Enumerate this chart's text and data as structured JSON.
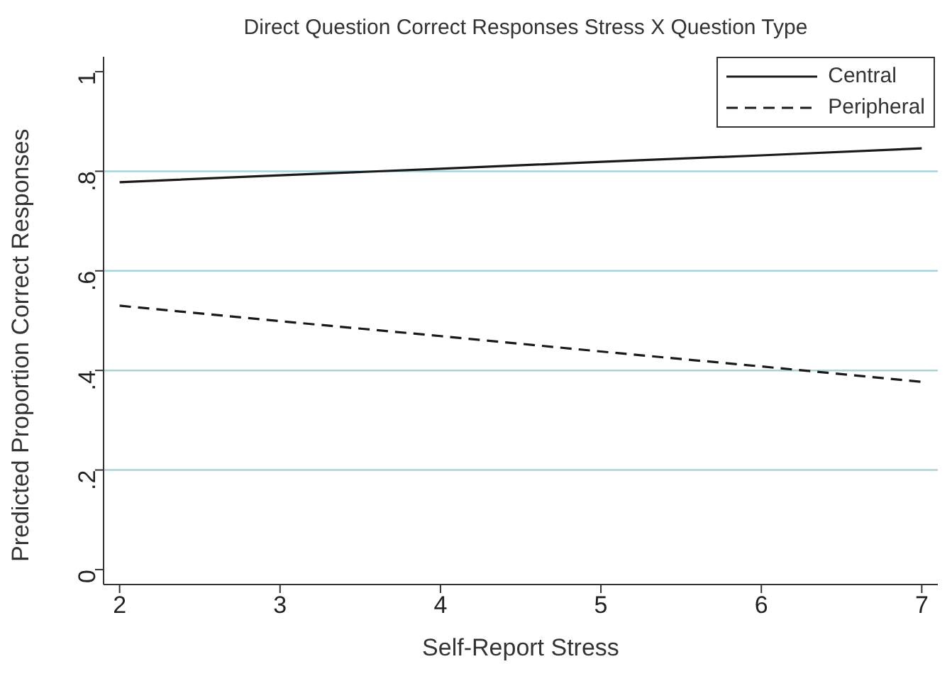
{
  "chart_data": {
    "type": "line",
    "title": "Direct Question Correct Responses Stress X Question Type",
    "xlabel": "Self-Report Stress",
    "ylabel": "Predicted Proportion Correct Responses",
    "x": [
      2,
      3,
      4,
      5,
      6,
      7
    ],
    "series": [
      {
        "name": "Central",
        "color": "#1a1a1a",
        "line_style": "solid",
        "values": [
          0.778,
          0.792,
          0.805,
          0.819,
          0.832,
          0.846
        ]
      },
      {
        "name": "Peripheral",
        "color": "#1a1a1a",
        "line_style": "dashed",
        "values": [
          0.53,
          0.499,
          0.469,
          0.438,
          0.408,
          0.377
        ]
      }
    ],
    "xlim": [
      1.9,
      7.1
    ],
    "xticks": [
      2,
      3,
      4,
      5,
      6,
      7
    ],
    "ylim": [
      -0.03,
      1.03
    ],
    "yticks": [
      {
        "value": 0,
        "label": "0"
      },
      {
        "value": 0.2,
        "label": ".2"
      },
      {
        "value": 0.4,
        "label": ".4"
      },
      {
        "value": 0.6,
        "label": ".6"
      },
      {
        "value": 0.8,
        "label": ".8"
      },
      {
        "value": 1,
        "label": "1"
      }
    ],
    "grid": "y",
    "legend": "top right",
    "marker": "none"
  }
}
